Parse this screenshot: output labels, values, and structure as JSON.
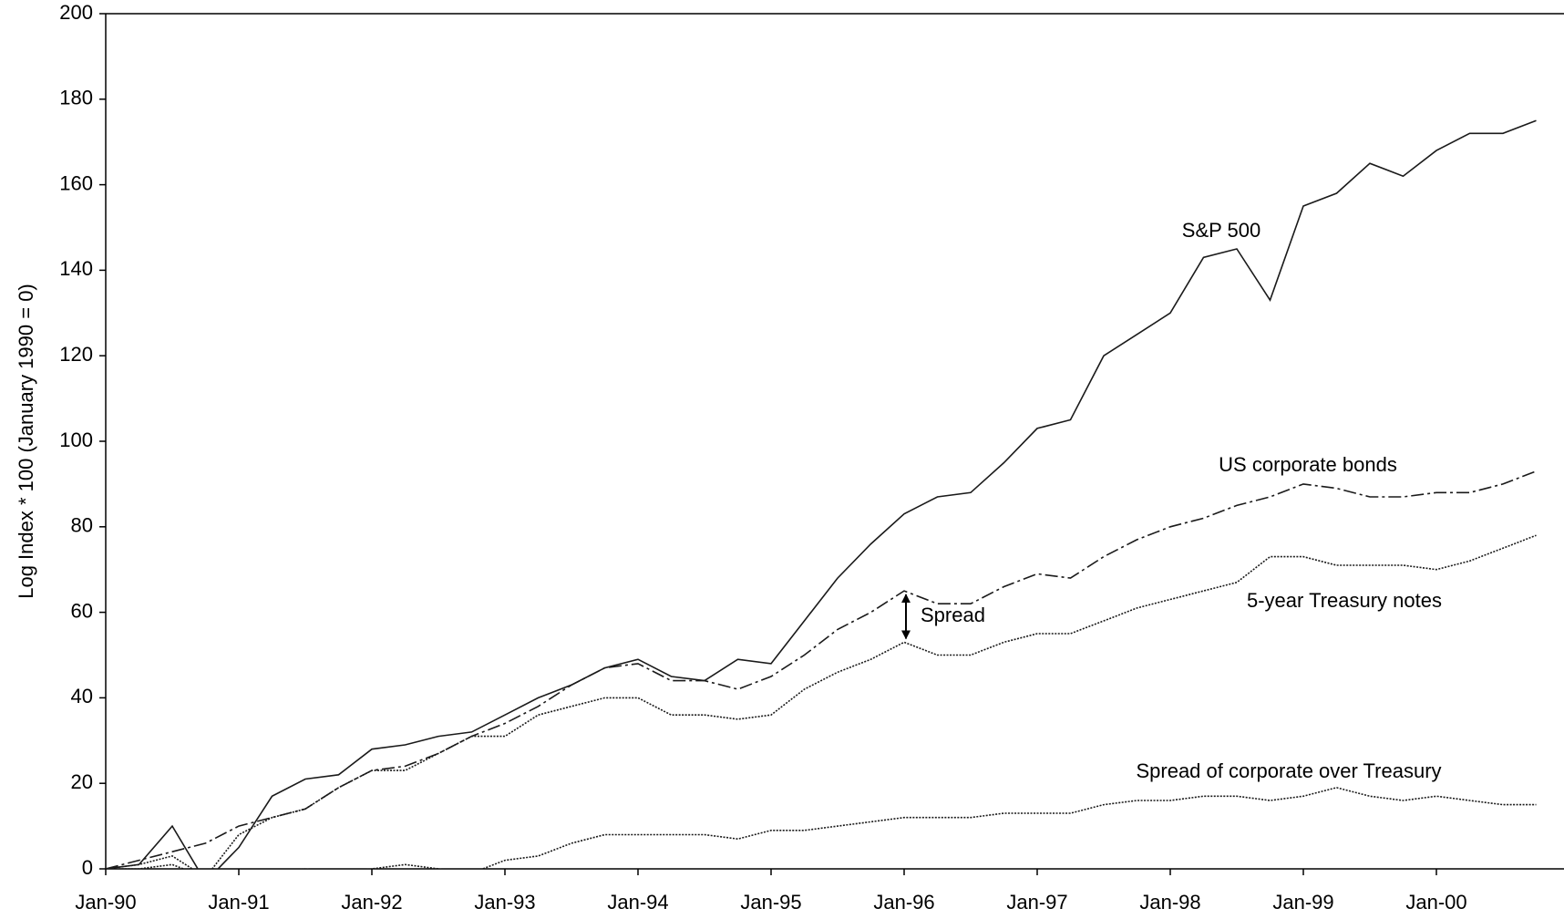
{
  "chart_data": {
    "type": "line",
    "y_label": "Log Index * 100 (January 1990 = 0)",
    "categories": [
      "Jan-90",
      null,
      null,
      null,
      "Jan-91",
      null,
      null,
      null,
      "Jan-92",
      null,
      null,
      null,
      "Jan-93",
      null,
      null,
      null,
      "Jan-94",
      null,
      null,
      null,
      "Jan-95",
      null,
      null,
      null,
      "Jan-96",
      null,
      null,
      null,
      "Jan-97",
      null,
      null,
      null,
      "Jan-98",
      null,
      null,
      null,
      "Jan-99",
      null,
      null,
      null,
      "Jan-00",
      null,
      null,
      null
    ],
    "series": [
      {
        "name": "S&P 500",
        "color": "#1a1a1a",
        "dash": "none",
        "values": [
          0,
          1,
          10,
          -3,
          5,
          17,
          21,
          22,
          28,
          29,
          31,
          32,
          36,
          40,
          43,
          47,
          49,
          45,
          44,
          49,
          48,
          58,
          68,
          76,
          83,
          87,
          88,
          95,
          103,
          105,
          120,
          125,
          130,
          143,
          145,
          133,
          155,
          158,
          165,
          162,
          168,
          172,
          172,
          175
        ]
      },
      {
        "name": "US corporate bonds",
        "color": "#1a1a1a",
        "dash": "14 4 3 4",
        "values": [
          0,
          2,
          4,
          6,
          10,
          12,
          14,
          19,
          23,
          24,
          27,
          31,
          34,
          38,
          43,
          47,
          48,
          44,
          44,
          42,
          45,
          50,
          56,
          60,
          65,
          62,
          62,
          66,
          69,
          68,
          73,
          77,
          80,
          82,
          85,
          87,
          90,
          89,
          87,
          87,
          88,
          88,
          90,
          93
        ]
      },
      {
        "name": "5-year Treasury notes",
        "color": "#1a1a1a",
        "dash": "2 1.5",
        "values": [
          0,
          1,
          3,
          -2,
          8,
          12,
          14,
          19,
          23,
          23,
          27,
          31,
          31,
          36,
          38,
          40,
          40,
          36,
          36,
          35,
          36,
          42,
          46,
          49,
          53,
          50,
          50,
          53,
          55,
          55,
          58,
          61,
          63,
          65,
          67,
          73,
          73,
          71,
          71,
          71,
          70,
          72,
          75,
          78
        ]
      },
      {
        "name": "Spread of corporate over Treasury",
        "color": "#1a1a1a",
        "dash": "2 1.5",
        "values": [
          0,
          0,
          1,
          -2,
          -1,
          -1,
          0,
          -1,
          0,
          1,
          0,
          -1,
          2,
          3,
          6,
          8,
          8,
          8,
          8,
          7,
          9,
          9,
          10,
          11,
          12,
          12,
          12,
          13,
          13,
          13,
          15,
          16,
          16,
          17,
          17,
          16,
          17,
          19,
          17,
          16,
          17,
          16,
          15,
          15
        ]
      }
    ],
    "annotation": "Spread",
    "ylim": [
      0,
      200
    ],
    "yticks": [
      0,
      20,
      40,
      60,
      80,
      100,
      120,
      140,
      160,
      180,
      200
    ],
    "grid": false
  }
}
